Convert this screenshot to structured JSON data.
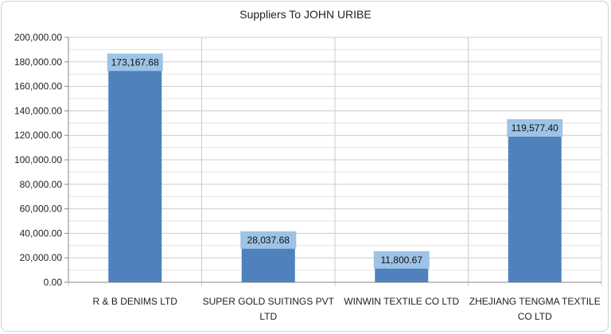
{
  "chart_data": {
    "type": "bar",
    "title": "Suppliers To JOHN URIBE",
    "xlabel": "",
    "ylabel": "",
    "categories": [
      [
        "R & B DENIMS LTD"
      ],
      [
        "SUPER GOLD SUITINGS PVT",
        "LTD"
      ],
      [
        "WINWIN TEXTILE CO LTD"
      ],
      [
        "ZHEJIANG TENGMA TEXTILE",
        "CO LTD"
      ]
    ],
    "values": [
      173167.68,
      28037.68,
      11800.67,
      119577.4
    ],
    "data_labels": [
      "173,167.68",
      "28,037.68",
      "11,800.67",
      "119,577.40"
    ],
    "ylim": [
      0,
      200000
    ],
    "y_ticks": [
      0,
      20000,
      40000,
      60000,
      80000,
      100000,
      120000,
      140000,
      160000,
      180000,
      200000
    ],
    "y_tick_labels": [
      "0.00",
      "20,000.00",
      "40,000.00",
      "60,000.00",
      "80,000.00",
      "100,000.00",
      "120,000.00",
      "140,000.00",
      "160,000.00",
      "180,000.00",
      "200,000.00"
    ],
    "grid": true,
    "legend": "none",
    "colors": {
      "bar": "#4f81bd",
      "label_bg": "#9dc3e6",
      "grid": "#cccccc"
    }
  }
}
